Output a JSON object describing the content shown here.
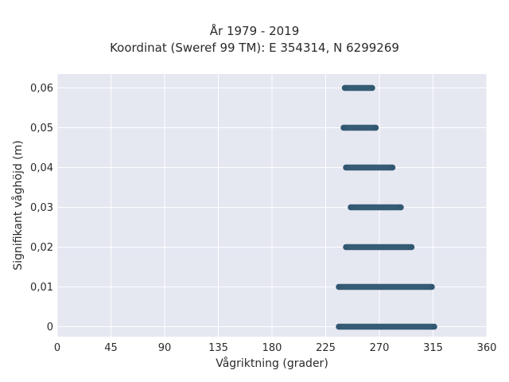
{
  "chart_data": {
    "type": "scatter",
    "title": "År 1979 - 2019",
    "subtitle": "Koordinat (Sweref 99 TM): E 354314, N 6299269",
    "xlabel": "Vågriktning (grader)",
    "ylabel": "Signifikant våghöjd (m)",
    "xlim": [
      0,
      360
    ],
    "ylim": [
      -0.0025,
      0.0635
    ],
    "x_ticks": [
      0,
      45,
      90,
      135,
      180,
      225,
      270,
      315,
      360
    ],
    "x_tick_labels": [
      "0",
      "45",
      "90",
      "135",
      "180",
      "225",
      "270",
      "315",
      "360"
    ],
    "y_ticks": [
      0,
      0.01,
      0.02,
      0.03,
      0.04,
      0.05,
      0.06
    ],
    "y_tick_labels": [
      "0",
      "0,01",
      "0,02",
      "0,03",
      "0,04",
      "0,05",
      "0,06"
    ],
    "grid": true,
    "series": [
      {
        "points": [
          {
            "y": 0.06,
            "x_from": 241,
            "x_to": 264
          },
          {
            "y": 0.05,
            "x_from": 240,
            "x_to": 267
          },
          {
            "y": 0.04,
            "x_from": 242,
            "x_to": 281
          },
          {
            "y": 0.03,
            "x_from": 246,
            "x_to": 288
          },
          {
            "y": 0.02,
            "x_from": 242,
            "x_to": 297
          },
          {
            "y": 0.01,
            "x_from": 236,
            "x_to": 314
          },
          {
            "y": 0,
            "x_from": 236,
            "x_to": 316
          }
        ]
      }
    ],
    "colors": {
      "marker": "#2f5670",
      "plot_bg": "#e5e7f1",
      "grid": "#ffffff",
      "text": "#2a2a2a"
    }
  }
}
